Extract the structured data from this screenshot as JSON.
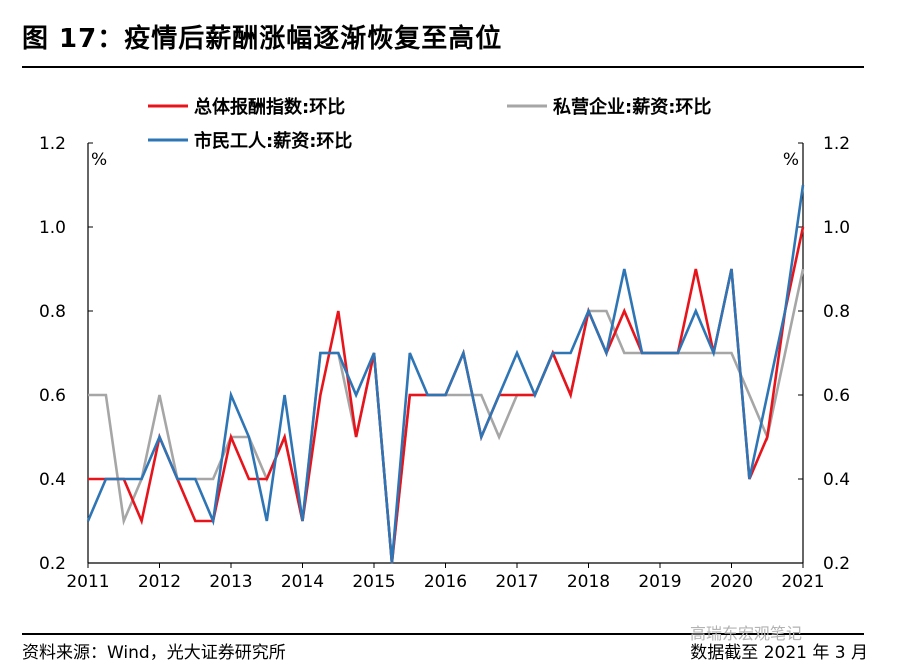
{
  "title": "图 17：疫情后薪酬涨幅逐渐恢复至高位",
  "footer": {
    "source": "资料来源：Wind，光大证券研究所",
    "cutoff": "数据截至 2021 年 3 月",
    "watermark": "高瑞东宏观笔记"
  },
  "chart_data": {
    "type": "line",
    "unit_left": "%",
    "unit_right": "%",
    "ylim": [
      0.2,
      1.2
    ],
    "yticks": [
      "0.2",
      "0.4",
      "0.6",
      "0.8",
      "1.0",
      "1.2"
    ],
    "xticks": [
      "2011",
      "2012",
      "2013",
      "2014",
      "2015",
      "2016",
      "2017",
      "2018",
      "2019",
      "2020",
      "2021"
    ],
    "x": [
      "2011Q1",
      "2011Q2",
      "2011Q3",
      "2011Q4",
      "2012Q1",
      "2012Q2",
      "2012Q3",
      "2012Q4",
      "2013Q1",
      "2013Q2",
      "2013Q3",
      "2013Q4",
      "2014Q1",
      "2014Q2",
      "2014Q3",
      "2014Q4",
      "2015Q1",
      "2015Q2",
      "2015Q3",
      "2015Q4",
      "2016Q1",
      "2016Q2",
      "2016Q3",
      "2016Q4",
      "2017Q1",
      "2017Q2",
      "2017Q3",
      "2017Q4",
      "2018Q1",
      "2018Q2",
      "2018Q3",
      "2018Q4",
      "2019Q1",
      "2019Q2",
      "2019Q3",
      "2019Q4",
      "2020Q1",
      "2020Q2",
      "2020Q3",
      "2020Q4",
      "2021Q1"
    ],
    "grid": false,
    "legend_position": "top",
    "series": [
      {
        "name": "总体报酬指数:环比",
        "color": "#e8141c",
        "values": [
          0.4,
          0.4,
          0.4,
          0.3,
          0.5,
          0.4,
          0.3,
          0.3,
          0.5,
          0.4,
          0.4,
          0.5,
          0.3,
          0.6,
          0.8,
          0.5,
          0.7,
          0.2,
          0.6,
          0.6,
          0.6,
          0.7,
          0.5,
          0.6,
          0.6,
          0.6,
          0.7,
          0.6,
          0.8,
          0.7,
          0.8,
          0.7,
          0.7,
          0.7,
          0.9,
          0.7,
          0.9,
          0.4,
          0.5,
          0.8,
          1.0
        ]
      },
      {
        "name": "私营企业:薪资:环比",
        "color": "#a6a6a6",
        "values": [
          0.6,
          0.6,
          0.3,
          0.4,
          0.6,
          0.4,
          0.4,
          0.4,
          0.5,
          0.5,
          0.4,
          0.5,
          0.3,
          0.7,
          0.7,
          0.5,
          0.7,
          0.2,
          0.6,
          0.6,
          0.6,
          0.6,
          0.6,
          0.5,
          0.6,
          0.6,
          0.7,
          0.6,
          0.8,
          0.8,
          0.7,
          0.7,
          0.7,
          0.7,
          0.7,
          0.7,
          0.7,
          0.6,
          0.5,
          0.7,
          0.9
        ]
      },
      {
        "name": "市民工人:薪资:环比",
        "color": "#2e75b6",
        "values": [
          0.3,
          0.4,
          0.4,
          0.4,
          0.5,
          0.4,
          0.4,
          0.3,
          0.6,
          0.5,
          0.3,
          0.6,
          0.3,
          0.7,
          0.7,
          0.6,
          0.7,
          0.2,
          0.7,
          0.6,
          0.6,
          0.7,
          0.5,
          0.6,
          0.7,
          0.6,
          0.7,
          0.7,
          0.8,
          0.7,
          0.9,
          0.7,
          0.7,
          0.7,
          0.8,
          0.7,
          0.9,
          0.4,
          0.6,
          0.8,
          1.1
        ]
      }
    ]
  }
}
